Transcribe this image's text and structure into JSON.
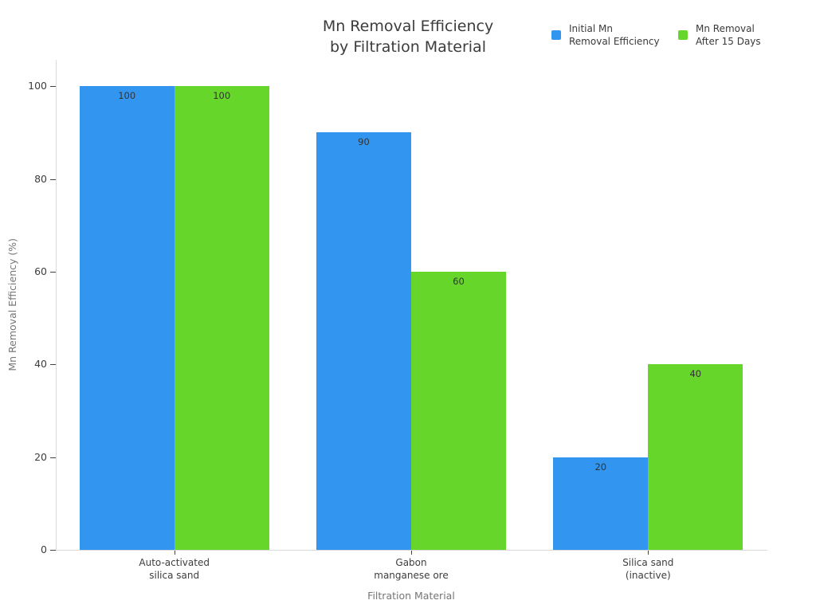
{
  "chart_data": {
    "type": "bar",
    "title": "Mn Removal Efficiency by Filtration Material",
    "title_lines": [
      "Mn Removal Efficiency",
      "by Filtration Material"
    ],
    "xlabel": "Filtration Material",
    "ylabel": "Mn Removal Efficiency (%)",
    "categories": [
      "Auto-activated silica sand",
      "Gabon manganese ore",
      "Silica sand (inactive)"
    ],
    "category_lines": [
      [
        "Auto-activated",
        "silica sand"
      ],
      [
        "Gabon",
        "manganese ore"
      ],
      [
        "Silica sand",
        "(inactive)"
      ]
    ],
    "series": [
      {
        "name": "Initial Mn Removal Efficiency",
        "name_lines": [
          "Initial Mn",
          "Removal Efficiency"
        ],
        "color": "#3295f0",
        "values": [
          100,
          90,
          20
        ]
      },
      {
        "name": "Mn Removal After 15 Days",
        "name_lines": [
          "Mn Removal",
          "After 15 Days"
        ],
        "color": "#66d62b",
        "values": [
          100,
          60,
          40
        ]
      }
    ],
    "yticks": [
      0,
      20,
      40,
      60,
      80,
      100
    ],
    "ylim": [
      0,
      105.7
    ],
    "bar_value_labels": true,
    "legend_position": "top-right",
    "grid": false,
    "background": "#ffffff"
  }
}
